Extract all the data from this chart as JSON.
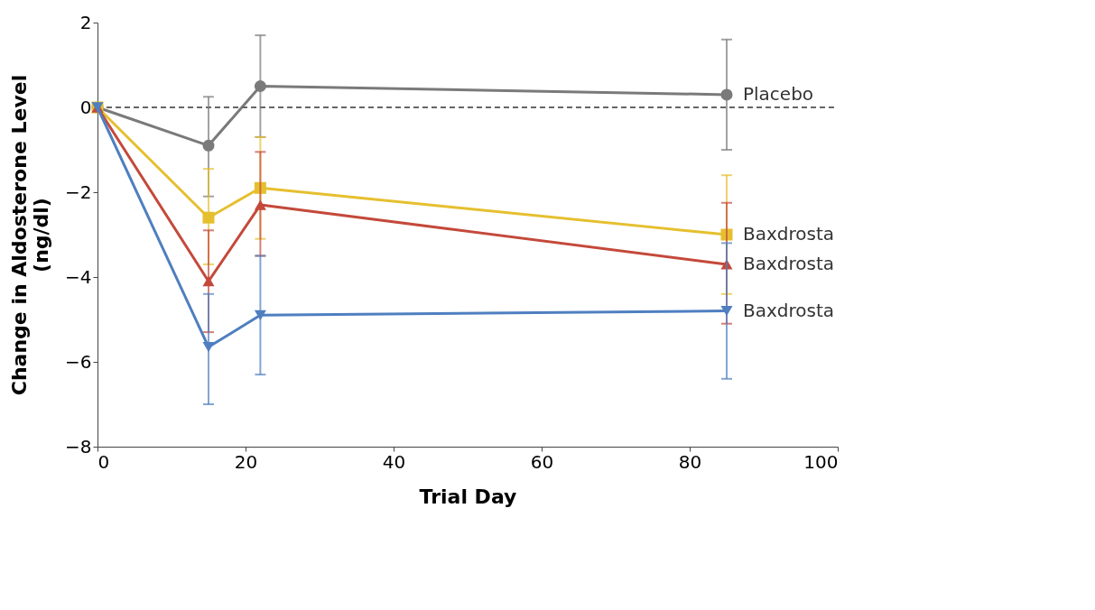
{
  "chart_data": {
    "type": "line",
    "xlabel": "Trial Day",
    "ylabel": "Change in Aldosterone Level\n(ng/dl)",
    "x": [
      0,
      15,
      22,
      85
    ],
    "series": [
      {
        "name": "Placebo",
        "color": "#7a7a7a",
        "marker": "circle",
        "values": [
          0,
          -0.9,
          0.5,
          0.3
        ],
        "errors": [
          null,
          [
            -2.1,
            0.25
          ],
          [
            -0.7,
            1.7
          ],
          [
            -1.0,
            1.6
          ]
        ]
      },
      {
        "name": "Baxdrosta",
        "color": "#e6bf2e",
        "marker": "square",
        "values": [
          0,
          -2.6,
          -1.9,
          -3.0
        ],
        "errors": [
          null,
          [
            -3.7,
            -1.45
          ],
          [
            -3.1,
            -0.7
          ],
          [
            -4.4,
            -1.6
          ]
        ]
      },
      {
        "name": "Baxdrosta",
        "color": "#c4493a",
        "marker": "triangle",
        "values": [
          0,
          -4.1,
          -2.3,
          -3.7
        ],
        "errors": [
          null,
          [
            -5.3,
            -2.9
          ],
          [
            -3.5,
            -1.05
          ],
          [
            -5.1,
            -2.25
          ]
        ]
      },
      {
        "name": "Baxdrosta",
        "color": "#4f7fc0",
        "marker": "triangle-down",
        "values": [
          0,
          -5.65,
          -4.9,
          -4.8
        ],
        "errors": [
          null,
          [
            -7.0,
            -4.4
          ],
          [
            -6.3,
            -3.5
          ],
          [
            -6.4,
            -3.2
          ]
        ]
      }
    ],
    "xlim": [
      0,
      100
    ],
    "xticks": [
      0,
      20,
      40,
      60,
      80,
      100
    ],
    "ylim": [
      -8,
      2
    ],
    "yticks": [
      -8,
      -6,
      -4,
      -2,
      0,
      2
    ],
    "ref_lines": [
      {
        "axis": "y",
        "value": 0,
        "color": "#666666",
        "line_style": "dashed"
      }
    ],
    "grid": false
  }
}
